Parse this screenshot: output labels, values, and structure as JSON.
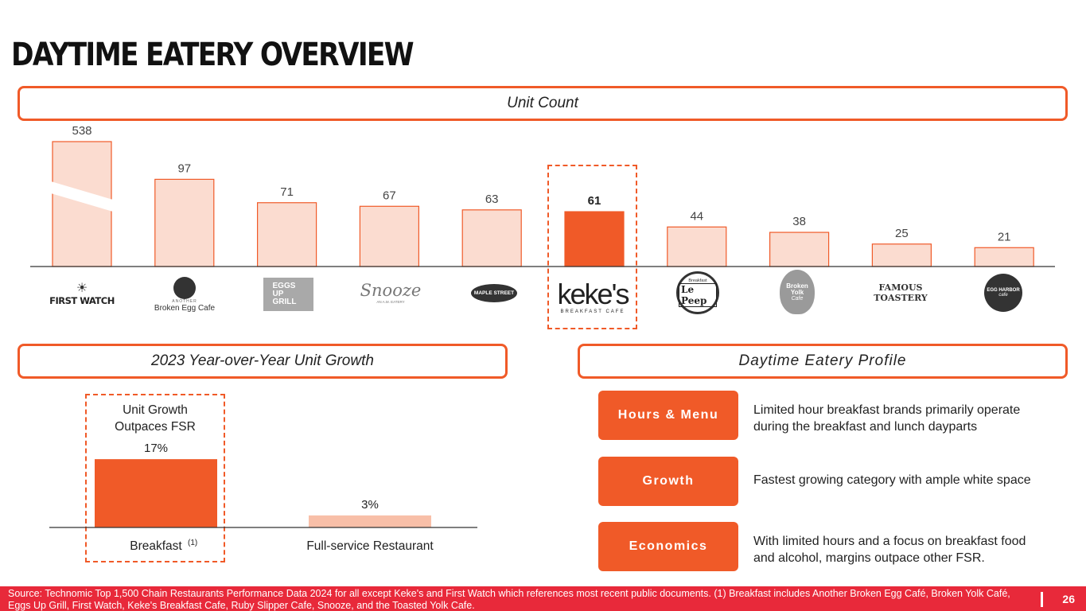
{
  "title": "DAYTIME EATERY OVERVIEW",
  "sections": {
    "unit_count": "Unit Count",
    "growth": "2023 Year-over-Year Unit Growth",
    "profile": "Daytime Eatery Profile"
  },
  "brands": [
    {
      "name": "First Watch",
      "logo_text": "FIRST WATCH",
      "sub": ""
    },
    {
      "name": "Another Broken Egg Cafe",
      "logo_text": "Broken Egg Cafe",
      "sub": "ANOTHER"
    },
    {
      "name": "Eggs Up Grill",
      "logo_text": "EGGS UP GRILL",
      "sub": ""
    },
    {
      "name": "Snooze",
      "logo_text": "Snooze",
      "sub": "AN A.M. EATERY"
    },
    {
      "name": "Maple Street",
      "logo_text": "MAPLE STREET",
      "sub": ""
    },
    {
      "name": "Keke's",
      "logo_text": "keke's",
      "sub": "BREAKFAST CAFE"
    },
    {
      "name": "Le Peep",
      "logo_text": "Le Peep",
      "sub": "Breakfast"
    },
    {
      "name": "Broken Yolk Cafe",
      "logo_text": "Broken Yolk",
      "sub": "Cafe"
    },
    {
      "name": "Famous Toastery",
      "logo_text": "FAMOUS",
      "sub": "TOASTERY"
    },
    {
      "name": "Egg Harbor",
      "logo_text": "EGG HARBOR",
      "sub": "cafe"
    }
  ],
  "chart_data": [
    {
      "type": "bar",
      "title": "Unit Count",
      "categories": [
        "First Watch",
        "Another Broken Egg Cafe",
        "Eggs Up Grill",
        "Snooze",
        "Maple Street",
        "Keke's",
        "Le Peep",
        "Broken Yolk Cafe",
        "Famous Toastery",
        "Egg Harbor"
      ],
      "values": [
        538,
        97,
        71,
        67,
        63,
        61,
        44,
        38,
        25,
        21
      ],
      "highlight": "Keke's",
      "axis_break": "First Watch",
      "colors": {
        "bar": "#fbdcd0",
        "bar_border": "#f05a28",
        "highlight": "#f05a28"
      }
    },
    {
      "type": "bar",
      "title": "2023 Year-over-Year Unit Growth",
      "categories": [
        "Breakfast",
        "Full-service Restaurant"
      ],
      "values": [
        17,
        3
      ],
      "value_labels": [
        "17%",
        "3%"
      ],
      "footnote_marker": "(1)",
      "callout": "Unit Growth Outpaces FSR",
      "colors": {
        "primary": "#f05a28",
        "secondary": "#f8bfa8"
      }
    }
  ],
  "profile": [
    {
      "label": "Hours & Menu",
      "text": "Limited hour breakfast brands primarily operate during the breakfast and lunch dayparts"
    },
    {
      "label": "Growth",
      "text": "Fastest growing category with ample white space"
    },
    {
      "label": "Economics",
      "text": "With limited hours and a focus on breakfast food and alcohol, margins outpace other FSR."
    }
  ],
  "footer": {
    "source": "Source: Technomic Top 1,500 Chain Restaurants Performance Data 2024 for all except Keke's and First Watch which references most recent public documents. (1) Breakfast includes Another Broken Egg Café, Broken Yolk Café, Eggs Up Grill, First Watch, Keke's Breakfast Cafe, Ruby Slipper Cafe, Snooze, and the Toasted Yolk Cafe.",
    "page": "26"
  }
}
